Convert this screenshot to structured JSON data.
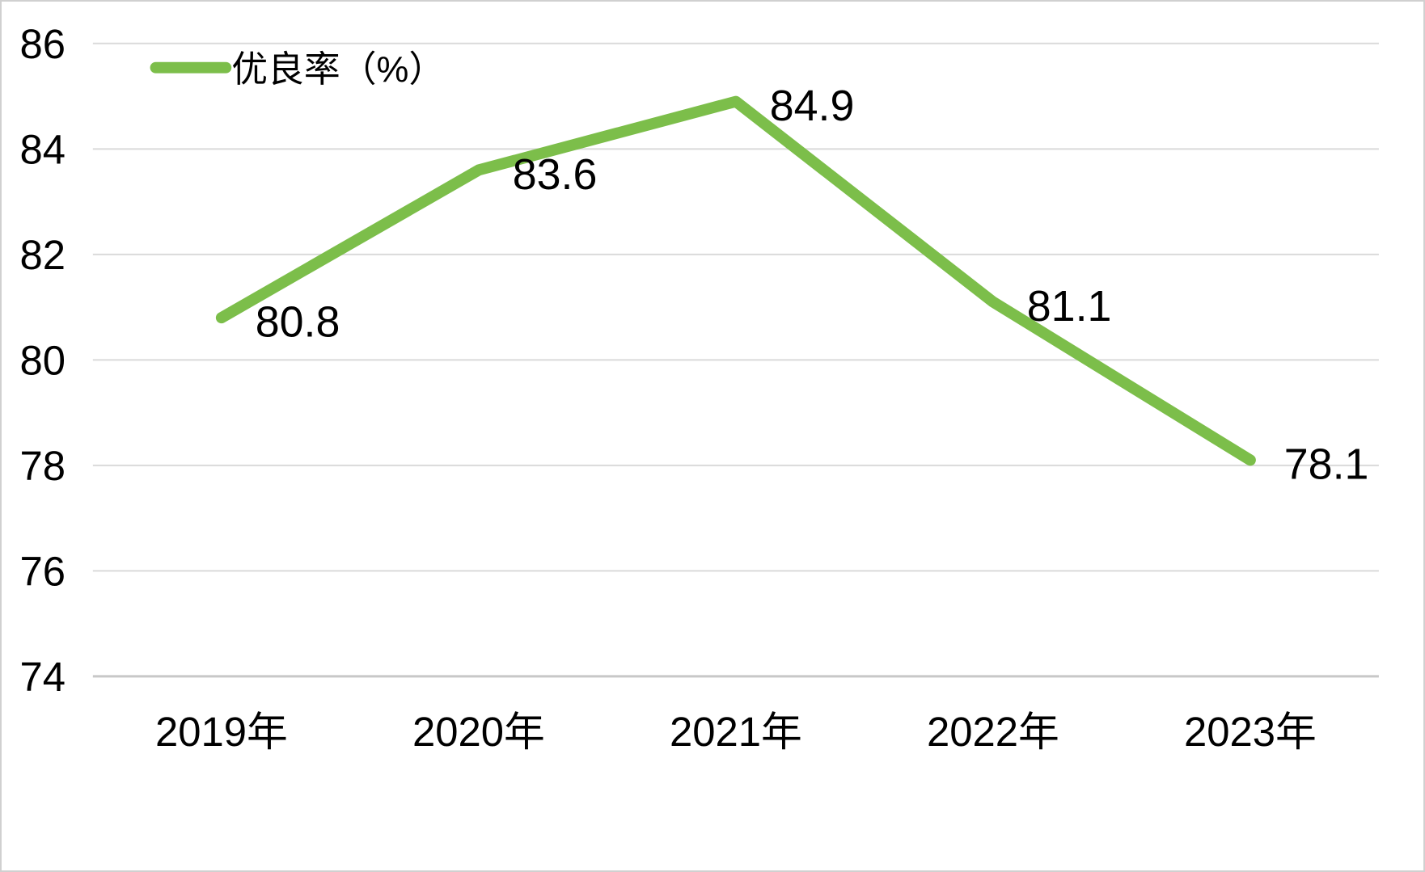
{
  "chart_data": {
    "type": "line",
    "title": "",
    "xlabel": "",
    "ylabel": "",
    "categories": [
      "2019年",
      "2020年",
      "2021年",
      "2022年",
      "2023年"
    ],
    "series": [
      {
        "name": "优良率（%）",
        "values": [
          80.8,
          83.6,
          84.9,
          81.1,
          78.1
        ]
      }
    ],
    "data_labels": [
      "80.8",
      "83.6",
      "84.9",
      "81.1",
      "78.1"
    ],
    "ylim": [
      74,
      86
    ],
    "ytick_step": 2,
    "ytick_labels": [
      "74",
      "76",
      "78",
      "80",
      "82",
      "84",
      "86"
    ],
    "legend": {
      "label": "优良率（%）",
      "position": "top-left"
    },
    "grid": "horizontal-on",
    "colors": {
      "series": "#7CBE4A",
      "gridline": "#DADADA",
      "axis_line": "#C8C8C8",
      "text": "#000000",
      "background": "#FFFFFF",
      "border": "#D0D0D0"
    }
  }
}
